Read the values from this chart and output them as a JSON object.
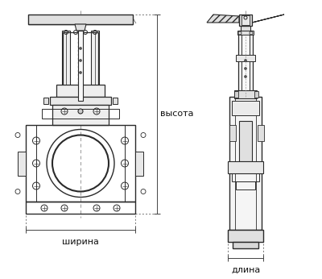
{
  "bg_color": "#ffffff",
  "line_color": "#2a2a2a",
  "dim_line_color": "#444444",
  "label_color": "#111111",
  "label_fontsize": 8.0,
  "labels": {
    "width": "ширина",
    "height": "высота",
    "length": "длина"
  },
  "fig_width": 4.0,
  "fig_height": 3.46,
  "dpi": 100
}
